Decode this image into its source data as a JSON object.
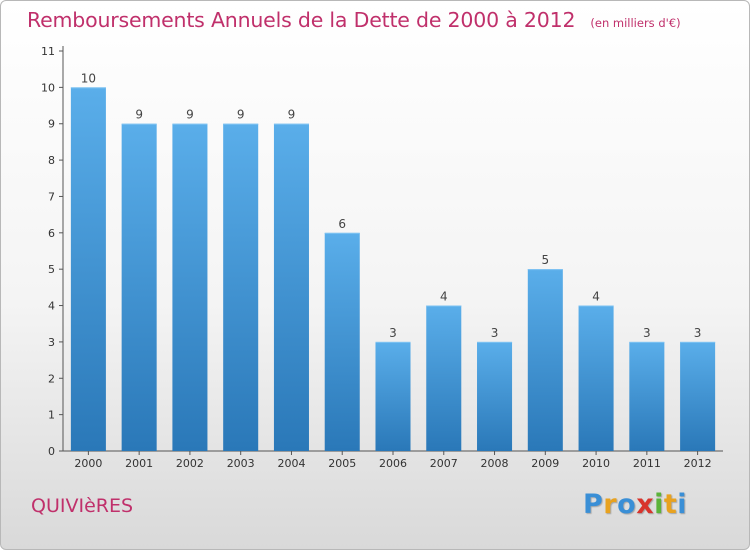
{
  "chart_data": {
    "type": "bar",
    "title": "Remboursements Annuels de la Dette de 2000 à 2012",
    "subtitle": "(en milliers d'€)",
    "categories": [
      "2000",
      "2001",
      "2002",
      "2003",
      "2004",
      "2005",
      "2006",
      "2007",
      "2008",
      "2009",
      "2010",
      "2011",
      "2012"
    ],
    "values": [
      10,
      9,
      9,
      9,
      9,
      6,
      3,
      4,
      3,
      5,
      4,
      3,
      3
    ],
    "data_labels": [
      "10",
      "9",
      "9",
      "9",
      "9",
      "6",
      "3",
      "4",
      "3",
      "5",
      "4",
      "3",
      "3"
    ],
    "y_ticks": [
      "0",
      "1",
      "2",
      "3",
      "4",
      "5",
      "6",
      "7",
      "8",
      "9",
      "10",
      "11"
    ],
    "ylim": [
      0,
      11
    ],
    "xlabel": "",
    "ylabel": "",
    "grid": false,
    "bar_color_top": "#5aaeea",
    "bar_color_bottom": "#2a78b8"
  },
  "footer": {
    "place": "QUIVIèRES",
    "logo_letters": [
      "P",
      "r",
      "o",
      "x",
      "i",
      "t",
      "i"
    ],
    "logo_colors": [
      "#3a8fd6",
      "#e8a21f",
      "#3a8fd6",
      "#d8342c",
      "#5cb33a",
      "#e8a21f",
      "#3a8fd6"
    ]
  },
  "accent_color": "#c0306b"
}
